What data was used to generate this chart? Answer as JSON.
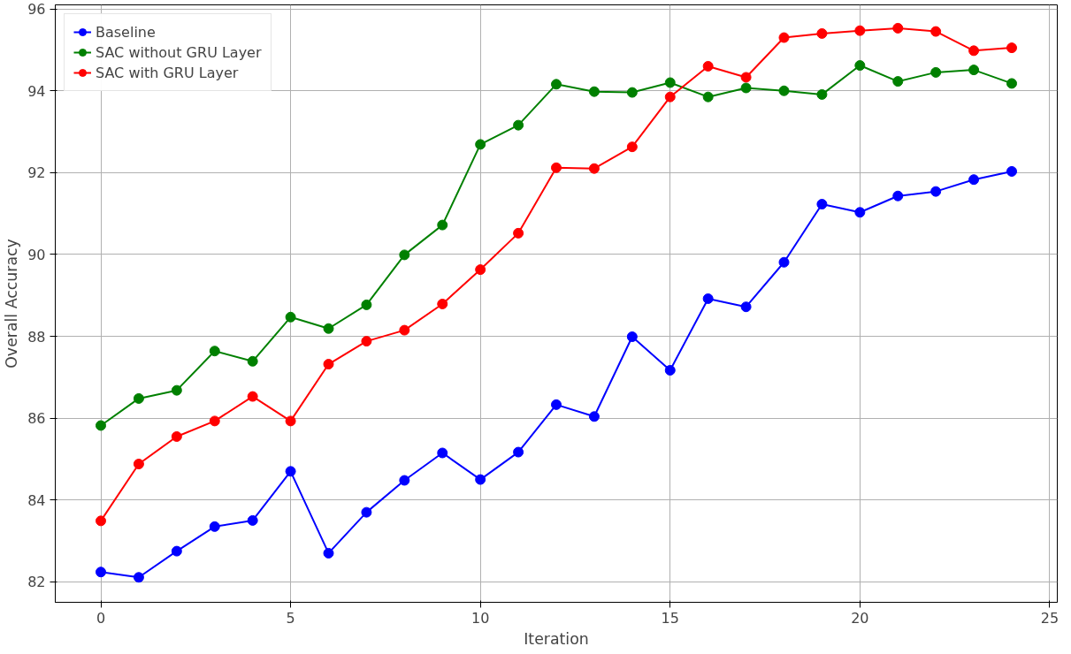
{
  "chart_data": {
    "type": "line",
    "xlabel": "Iteration",
    "ylabel": "Overall Accuracy",
    "x": [
      0,
      1,
      2,
      3,
      4,
      5,
      6,
      7,
      8,
      9,
      10,
      11,
      12,
      13,
      14,
      15,
      16,
      17,
      18,
      19,
      20,
      21,
      22,
      23,
      24
    ],
    "series": [
      {
        "name": "Baseline",
        "color": "#0000ff",
        "values": [
          82.24,
          82.11,
          82.75,
          83.35,
          83.5,
          84.7,
          82.7,
          83.7,
          84.48,
          85.15,
          84.5,
          85.17,
          86.33,
          86.04,
          87.99,
          87.17,
          88.92,
          88.72,
          89.81,
          91.23,
          91.03,
          91.43,
          91.54,
          91.83,
          92.03
        ]
      },
      {
        "name": "SAC without GRU Layer",
        "color": "#008000",
        "values": [
          85.82,
          86.48,
          86.68,
          87.64,
          87.39,
          88.47,
          88.19,
          88.77,
          89.99,
          90.72,
          92.69,
          93.16,
          94.16,
          93.98,
          93.96,
          94.2,
          93.85,
          94.07,
          94.0,
          93.91,
          94.62,
          94.23,
          94.45,
          94.51,
          94.18
        ]
      },
      {
        "name": "SAC with GRU Layer",
        "color": "#ff0000",
        "values": [
          83.49,
          84.88,
          85.55,
          85.93,
          86.53,
          85.93,
          87.32,
          87.88,
          88.15,
          88.79,
          89.63,
          90.52,
          92.12,
          92.1,
          92.63,
          93.85,
          94.6,
          94.33,
          95.3,
          95.4,
          95.47,
          95.53,
          95.45,
          94.98,
          95.05
        ]
      }
    ],
    "xlim": [
      -1.2,
      25.2
    ],
    "ylim": [
      81.5,
      96.1
    ],
    "xticks": [
      0,
      5,
      10,
      15,
      20,
      25
    ],
    "yticks": [
      82,
      84,
      86,
      88,
      90,
      92,
      94,
      96
    ],
    "grid": true,
    "legend": "top left",
    "marker": "circle",
    "line_style": "solid"
  }
}
